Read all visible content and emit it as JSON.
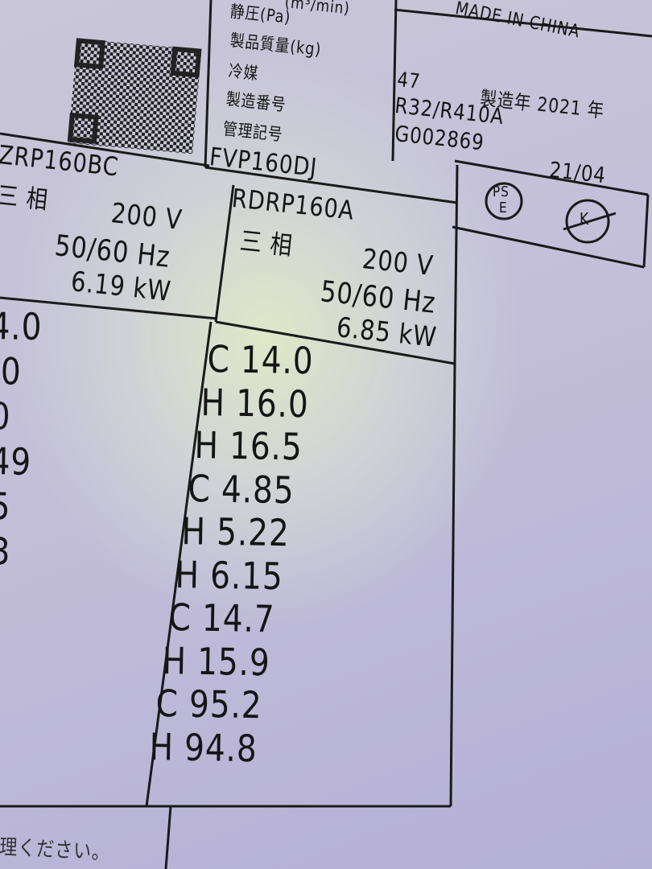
{
  "header": {
    "flow_unit": "(m³/min)",
    "made_in": "MADE IN CHINA"
  },
  "spec_labels": [
    "静圧(Pa)",
    "製品質量(kg)",
    "冷媒",
    "製造番号",
    "管理記号"
  ],
  "spec_values": {
    "weight": "47",
    "year": "製造年 2021 年",
    "refrigerant": "R32/R410A",
    "serial": "G002869",
    "date": "21/04",
    "control": "FVP160DJ"
  },
  "marks": [
    "PS",
    "E",
    "K"
  ],
  "units": [
    {
      "model": "ZRP160BC",
      "phase": "三 相",
      "voltage": "200 V",
      "frequency": "50/60 Hz",
      "power": "6.19 kW",
      "values": [
        "4.0",
        ".0",
        "0",
        "49",
        "5",
        "3"
      ]
    },
    {
      "model": "RDRP160A",
      "phase": "三 相",
      "voltage": "200 V",
      "frequency": "50/60 Hz",
      "power": "6.85 kW",
      "values": [
        "C 14.0",
        "H 16.0",
        "H 16.5",
        "C 4.85",
        "H 5.22",
        "H 6.15",
        "C 14.7",
        "H 15.9",
        "C 95.2",
        "H 94.8"
      ]
    }
  ],
  "footer": "理ください。"
}
